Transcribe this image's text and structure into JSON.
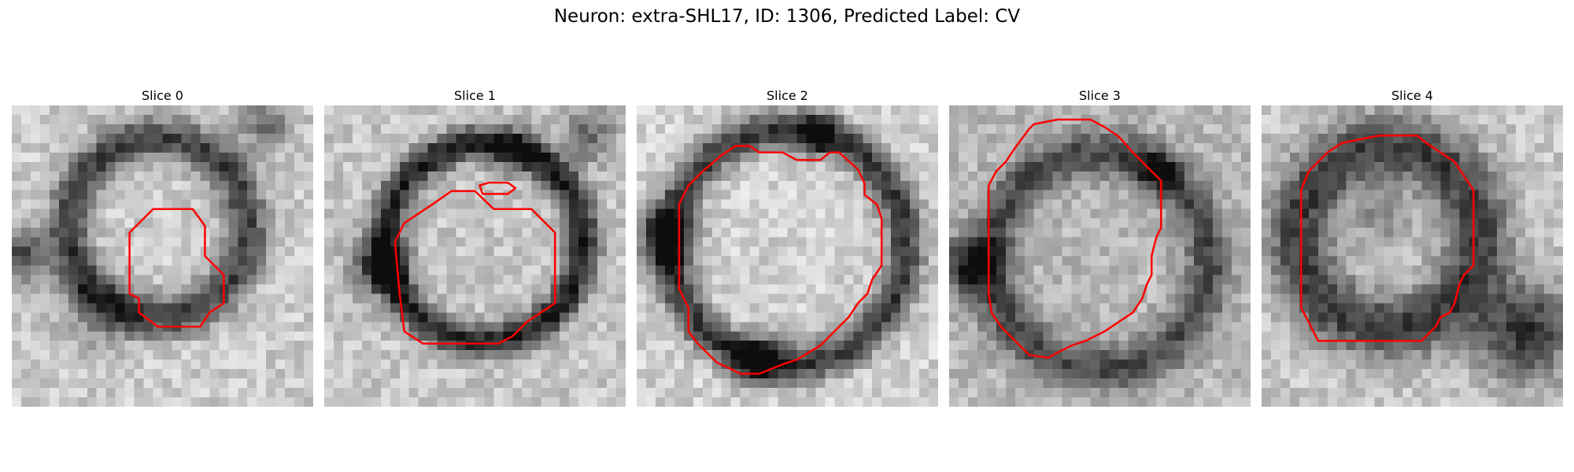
{
  "figure": {
    "title": "Neuron: extra-SHL17, ID: 1306, Predicted Label: CV",
    "contour_color": "#ff0000"
  },
  "panels": [
    {
      "title": "Slice 0"
    },
    {
      "title": "Slice 1"
    },
    {
      "title": "Slice 2"
    },
    {
      "title": "Slice 3"
    },
    {
      "title": "Slice 4"
    }
  ]
}
